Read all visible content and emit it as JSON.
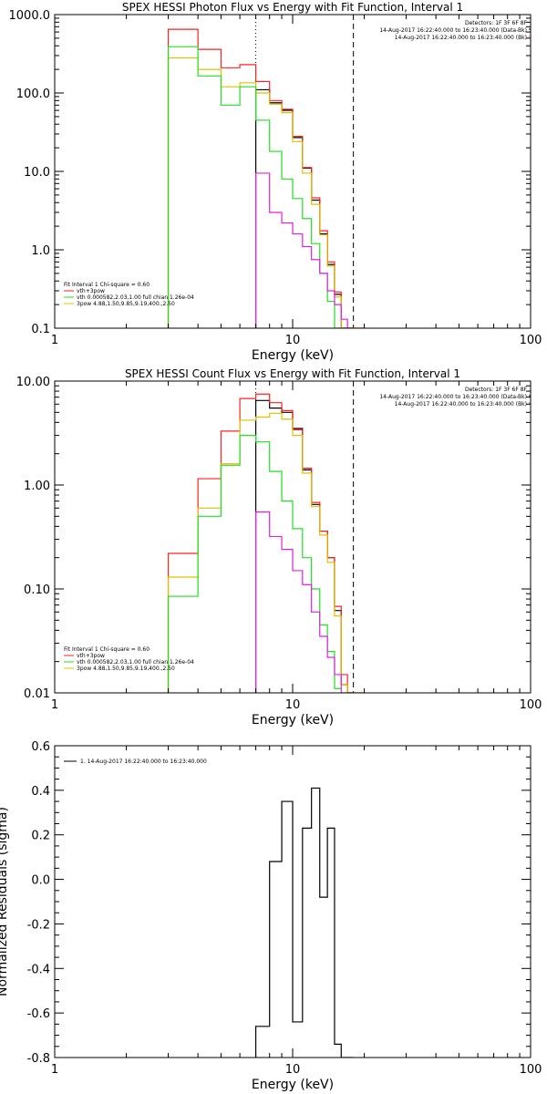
{
  "colors": {
    "black": "#000000",
    "red": "#ff2020",
    "green": "#20e020",
    "yellow": "#e0c000",
    "magenta": "#e020e0",
    "background": "#ffffff"
  },
  "chart_data": [
    {
      "type": "line",
      "title": "SPEX HESSI Photon Flux vs Energy with Fit Function, Interval 1",
      "xlabel": "Energy (keV)",
      "ylabel": "",
      "xscale": "log",
      "yscale": "log",
      "xlim": [
        1,
        100
      ],
      "ylim": [
        0.1,
        1000
      ],
      "xticks": [
        {
          "v": 1,
          "label": "1"
        },
        {
          "v": 10,
          "label": "10"
        },
        {
          "v": 100,
          "label": "100"
        }
      ],
      "yticks": [
        {
          "v": 0.1,
          "label": "0.1"
        },
        {
          "v": 1,
          "label": "1.0"
        },
        {
          "v": 10,
          "label": "10.0"
        },
        {
          "v": 100,
          "label": "100.0"
        },
        {
          "v": 1000,
          "label": "1000.0"
        }
      ],
      "vlines": [
        {
          "x": 7.0,
          "style": "dotted"
        },
        {
          "x": 18.0,
          "style": "dashed"
        }
      ],
      "corner_text": [
        "Detectors: 1F 3F 6F 8F",
        "14-Aug-2017 16:22:40.000 to 16:23:40.000 (Data-Bk)",
        "14-Aug-2017 16:22:40.000 to 16:23:40.000 (Bk)"
      ],
      "fit_text": [
        "Fit Interval 1    Chi-square = 0.60",
        "vth+3pow",
        "vth 0.000582,2.03,1.00  full chian 1.26e-04",
        "3pow 4.88,1.50,9.85,9.19,400.,2.50"
      ],
      "x_edges": [
        3.0,
        4.0,
        5.0,
        6.0,
        7.0,
        8.0,
        9.0,
        10.0,
        11.0,
        12.0,
        13.0,
        14.0,
        15.0,
        16.0,
        17.0,
        18.0,
        20.0
      ],
      "series": [
        {
          "key": "black",
          "color": "#000000",
          "start": 4,
          "values": [
            110,
            75,
            60,
            27,
            11,
            4.3,
            1.6,
            0.65,
            0.27,
            0.1,
            0.1
          ]
        },
        {
          "key": "red",
          "color": "#ff2020",
          "start": 0,
          "values": [
            650,
            360,
            210,
            230,
            140,
            80,
            62,
            28,
            11.2,
            4.6,
            1.75,
            0.7,
            0.29,
            0.1,
            0.1,
            0.1
          ]
        },
        {
          "key": "yellow",
          "color": "#e0c000",
          "start": 0,
          "values": [
            280,
            200,
            120,
            135,
            100,
            72,
            56,
            24,
            9.5,
            3.8,
            1.55,
            0.62,
            0.25,
            0.1,
            0.1,
            0.1
          ]
        },
        {
          "key": "green",
          "color": "#20e020",
          "start": 0,
          "values": [
            390,
            165,
            70,
            120,
            45,
            18,
            8,
            4.5,
            2.5,
            1.2,
            0.5,
            0.22,
            0.1
          ]
        },
        {
          "key": "magenta",
          "color": "#e020e0",
          "start": 4,
          "values": [
            9.5,
            3.0,
            2.2,
            1.6,
            1.1,
            0.75,
            0.5,
            0.3,
            0.2,
            0.13,
            0.1
          ]
        }
      ]
    },
    {
      "type": "line",
      "title": "SPEX HESSI Count Flux vs Energy with Fit Function, Interval 1",
      "xlabel": "Energy (keV)",
      "ylabel": "",
      "xscale": "log",
      "yscale": "log",
      "xlim": [
        1,
        100
      ],
      "ylim": [
        0.01,
        10
      ],
      "xticks": [
        {
          "v": 1,
          "label": "1"
        },
        {
          "v": 10,
          "label": "10"
        },
        {
          "v": 100,
          "label": "100"
        }
      ],
      "yticks": [
        {
          "v": 0.01,
          "label": "0.01"
        },
        {
          "v": 0.1,
          "label": "0.10"
        },
        {
          "v": 1,
          "label": "1.00"
        },
        {
          "v": 10,
          "label": "10.00"
        }
      ],
      "vlines": [
        {
          "x": 7.0,
          "style": "dotted"
        },
        {
          "x": 18.0,
          "style": "dashed"
        }
      ],
      "corner_text": [
        "Detectors: 1F 3F 6F 8F",
        "14-Aug-2017 16:22:40.000 to 16:23:40.000 (Data-Bk)",
        "14-Aug-2017 16:22:40.000 to 16:23:40.000 (Bk)"
      ],
      "fit_text": [
        "Fit Interval 1    Chi-square = 0.60",
        "vth+3pow",
        "vth 0.000582,2.03,1.00  full chian 1.26e-04",
        "3pow 4.88,1.50,9.85,9.19,400.,2.50"
      ],
      "x_edges": [
        3.0,
        4.0,
        5.0,
        6.0,
        7.0,
        8.0,
        9.0,
        10.0,
        11.0,
        12.0,
        13.0,
        14.0,
        15.0,
        16.0,
        17.0,
        18.0,
        20.0
      ],
      "series": [
        {
          "key": "black",
          "color": "#000000",
          "start": 4,
          "values": [
            6.5,
            5.5,
            5.0,
            3.5,
            1.4,
            0.65,
            0.36,
            0.2,
            0.062,
            0.012,
            0.01
          ]
        },
        {
          "key": "red",
          "color": "#ff2020",
          "start": 0,
          "values": [
            0.22,
            1.15,
            3.3,
            6.8,
            7.5,
            6.2,
            5.2,
            3.4,
            1.45,
            0.68,
            0.36,
            0.2,
            0.068,
            0.015,
            0.01,
            0.01
          ]
        },
        {
          "key": "yellow",
          "color": "#e0c000",
          "start": 0,
          "values": [
            0.13,
            0.6,
            1.6,
            4.2,
            4.5,
            4.9,
            4.3,
            3.0,
            1.3,
            0.62,
            0.33,
            0.18,
            0.055,
            0.012,
            0.01,
            0.01
          ]
        },
        {
          "key": "green",
          "color": "#20e020",
          "start": 0,
          "values": [
            0.085,
            0.5,
            1.55,
            3.0,
            2.6,
            1.35,
            0.7,
            0.38,
            0.2,
            0.1,
            0.045,
            0.025,
            0.011
          ]
        },
        {
          "key": "magenta",
          "color": "#e020e0",
          "start": 4,
          "values": [
            0.55,
            0.32,
            0.24,
            0.15,
            0.11,
            0.06,
            0.035,
            0.022,
            0.015,
            0.01,
            0.01
          ]
        }
      ]
    },
    {
      "type": "line",
      "title": "",
      "xlabel": "Energy (keV)",
      "ylabel": "Normalized Residuals (sigma)",
      "xscale": "log",
      "yscale": "linear",
      "xlim": [
        1,
        100
      ],
      "ylim": [
        -0.8,
        0.6
      ],
      "xticks": [
        {
          "v": 1,
          "label": "1"
        },
        {
          "v": 10,
          "label": "10"
        },
        {
          "v": 100,
          "label": "100"
        }
      ],
      "yticks": [
        {
          "v": -0.8,
          "label": "-0.8"
        },
        {
          "v": -0.6,
          "label": "-0.6"
        },
        {
          "v": -0.4,
          "label": "-0.4"
        },
        {
          "v": -0.2,
          "label": "-0.2"
        },
        {
          "v": 0.0,
          "label": "0.0"
        },
        {
          "v": 0.2,
          "label": "0.2"
        },
        {
          "v": 0.4,
          "label": "0.4"
        },
        {
          "v": 0.6,
          "label": "0.6"
        }
      ],
      "legend": "1. 14-Aug-2017 16:22:40.000 to 16:23:40.000",
      "x_edges": [
        7.0,
        8.0,
        9.0,
        10.0,
        11.0,
        12.0,
        13.0,
        14.0,
        15.0,
        16.0,
        17.0,
        18.0
      ],
      "series": [
        {
          "key": "residuals",
          "color": "#000000",
          "start": 0,
          "values": [
            -0.66,
            0.08,
            0.35,
            -0.64,
            0.23,
            0.41,
            -0.08,
            0.23,
            -0.74,
            -0.8,
            -0.8
          ]
        }
      ]
    }
  ]
}
